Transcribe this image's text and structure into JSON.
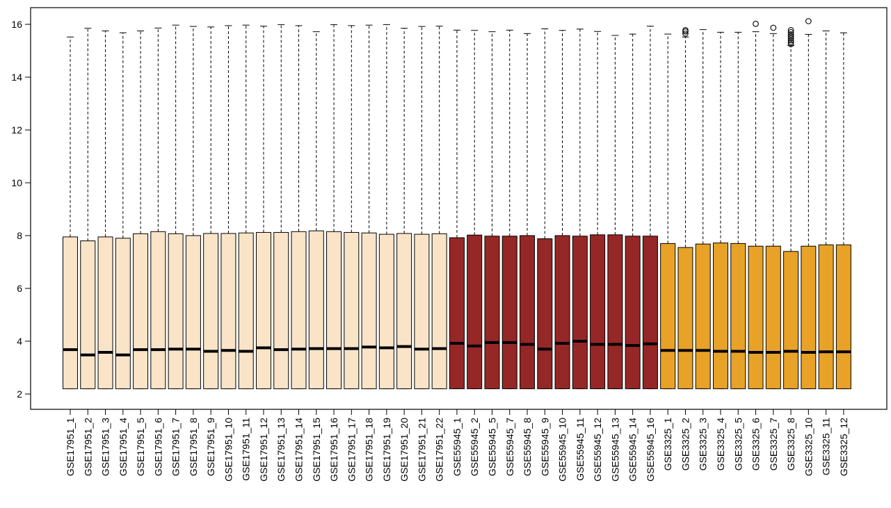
{
  "chart_data": {
    "type": "boxplot",
    "ylim": [
      2,
      16
    ],
    "y_ticks": [
      "2",
      "4",
      "6",
      "8",
      "10",
      "12",
      "14",
      "16"
    ],
    "grid": false,
    "groups": [
      {
        "prefix": "GSE17951",
        "color": "#F9E4C7"
      },
      {
        "prefix": "GSE55945",
        "color": "#962727"
      },
      {
        "prefix": "GSE3325",
        "color": "#E8A227"
      }
    ],
    "boxes": [
      {
        "label": "GSE17951_1",
        "group": 0,
        "min": 2.2,
        "q1": 2.2,
        "median": 3.68,
        "q3": 7.95,
        "max": 15.52,
        "outliers": []
      },
      {
        "label": "GSE17951_2",
        "group": 0,
        "min": 2.2,
        "q1": 2.2,
        "median": 3.48,
        "q3": 7.8,
        "max": 15.85,
        "outliers": []
      },
      {
        "label": "GSE17951_3",
        "group": 0,
        "min": 2.2,
        "q1": 2.2,
        "median": 3.58,
        "q3": 7.95,
        "max": 15.75,
        "outliers": []
      },
      {
        "label": "GSE17951_4",
        "group": 0,
        "min": 2.2,
        "q1": 2.2,
        "median": 3.48,
        "q3": 7.9,
        "max": 15.68,
        "outliers": []
      },
      {
        "label": "GSE17951_5",
        "group": 0,
        "min": 2.2,
        "q1": 2.2,
        "median": 3.68,
        "q3": 8.07,
        "max": 15.75,
        "outliers": []
      },
      {
        "label": "GSE17951_6",
        "group": 0,
        "min": 2.2,
        "q1": 2.2,
        "median": 3.68,
        "q3": 8.15,
        "max": 15.86,
        "outliers": []
      },
      {
        "label": "GSE17951_7",
        "group": 0,
        "min": 2.2,
        "q1": 2.2,
        "median": 3.7,
        "q3": 8.07,
        "max": 15.97,
        "outliers": []
      },
      {
        "label": "GSE17951_8",
        "group": 0,
        "min": 2.2,
        "q1": 2.2,
        "median": 3.7,
        "q3": 8.0,
        "max": 15.92,
        "outliers": []
      },
      {
        "label": "GSE17951_9",
        "group": 0,
        "min": 2.2,
        "q1": 2.2,
        "median": 3.62,
        "q3": 8.08,
        "max": 15.9,
        "outliers": []
      },
      {
        "label": "GSE17951_10",
        "group": 0,
        "min": 2.2,
        "q1": 2.2,
        "median": 3.65,
        "q3": 8.08,
        "max": 15.95,
        "outliers": []
      },
      {
        "label": "GSE17951_11",
        "group": 0,
        "min": 2.2,
        "q1": 2.2,
        "median": 3.62,
        "q3": 8.1,
        "max": 15.97,
        "outliers": []
      },
      {
        "label": "GSE17951_12",
        "group": 0,
        "min": 2.2,
        "q1": 2.2,
        "median": 3.75,
        "q3": 8.12,
        "max": 15.93,
        "outliers": []
      },
      {
        "label": "GSE17951_13",
        "group": 0,
        "min": 2.2,
        "q1": 2.2,
        "median": 3.68,
        "q3": 8.12,
        "max": 15.99,
        "outliers": []
      },
      {
        "label": "GSE17951_14",
        "group": 0,
        "min": 2.2,
        "q1": 2.2,
        "median": 3.7,
        "q3": 8.15,
        "max": 15.95,
        "outliers": []
      },
      {
        "label": "GSE17951_15",
        "group": 0,
        "min": 2.2,
        "q1": 2.2,
        "median": 3.72,
        "q3": 8.18,
        "max": 15.72,
        "outliers": []
      },
      {
        "label": "GSE17951_16",
        "group": 0,
        "min": 2.2,
        "q1": 2.2,
        "median": 3.72,
        "q3": 8.15,
        "max": 15.99,
        "outliers": []
      },
      {
        "label": "GSE17951_17",
        "group": 0,
        "min": 2.2,
        "q1": 2.2,
        "median": 3.72,
        "q3": 8.12,
        "max": 15.95,
        "outliers": []
      },
      {
        "label": "GSE17951_18",
        "group": 0,
        "min": 2.2,
        "q1": 2.2,
        "median": 3.78,
        "q3": 8.1,
        "max": 15.97,
        "outliers": []
      },
      {
        "label": "GSE17951_19",
        "group": 0,
        "min": 2.2,
        "q1": 2.2,
        "median": 3.75,
        "q3": 8.05,
        "max": 15.99,
        "outliers": []
      },
      {
        "label": "GSE17951_20",
        "group": 0,
        "min": 2.2,
        "q1": 2.2,
        "median": 3.8,
        "q3": 8.08,
        "max": 15.85,
        "outliers": []
      },
      {
        "label": "GSE17951_21",
        "group": 0,
        "min": 2.2,
        "q1": 2.2,
        "median": 3.7,
        "q3": 8.05,
        "max": 15.92,
        "outliers": []
      },
      {
        "label": "GSE17951_22",
        "group": 0,
        "min": 2.2,
        "q1": 2.2,
        "median": 3.72,
        "q3": 8.07,
        "max": 15.93,
        "outliers": []
      },
      {
        "label": "GSE55945_1",
        "group": 1,
        "min": 2.2,
        "q1": 2.2,
        "median": 3.92,
        "q3": 7.92,
        "max": 15.78,
        "outliers": []
      },
      {
        "label": "GSE55945_2",
        "group": 1,
        "min": 2.2,
        "q1": 2.2,
        "median": 3.82,
        "q3": 8.02,
        "max": 15.77,
        "outliers": []
      },
      {
        "label": "GSE55945_5",
        "group": 1,
        "min": 2.2,
        "q1": 2.2,
        "median": 3.95,
        "q3": 7.98,
        "max": 15.72,
        "outliers": []
      },
      {
        "label": "GSE55945_7",
        "group": 1,
        "min": 2.2,
        "q1": 2.2,
        "median": 3.95,
        "q3": 7.98,
        "max": 15.78,
        "outliers": []
      },
      {
        "label": "GSE55945_8",
        "group": 1,
        "min": 2.2,
        "q1": 2.2,
        "median": 3.88,
        "q3": 8.0,
        "max": 15.65,
        "outliers": []
      },
      {
        "label": "GSE55945_9",
        "group": 1,
        "min": 2.2,
        "q1": 2.2,
        "median": 3.7,
        "q3": 7.88,
        "max": 15.83,
        "outliers": []
      },
      {
        "label": "GSE55945_10",
        "group": 1,
        "min": 2.2,
        "q1": 2.2,
        "median": 3.92,
        "q3": 8.0,
        "max": 15.77,
        "outliers": []
      },
      {
        "label": "GSE55945_11",
        "group": 1,
        "min": 2.2,
        "q1": 2.2,
        "median": 4.0,
        "q3": 7.98,
        "max": 15.82,
        "outliers": []
      },
      {
        "label": "GSE55945_12",
        "group": 1,
        "min": 2.2,
        "q1": 2.2,
        "median": 3.88,
        "q3": 8.03,
        "max": 15.73,
        "outliers": []
      },
      {
        "label": "GSE55945_13",
        "group": 1,
        "min": 2.2,
        "q1": 2.2,
        "median": 3.88,
        "q3": 8.03,
        "max": 15.58,
        "outliers": []
      },
      {
        "label": "GSE55945_14",
        "group": 1,
        "min": 2.2,
        "q1": 2.2,
        "median": 3.84,
        "q3": 7.98,
        "max": 15.63,
        "outliers": []
      },
      {
        "label": "GSE55945_16",
        "group": 1,
        "min": 2.2,
        "q1": 2.2,
        "median": 3.9,
        "q3": 7.98,
        "max": 15.93,
        "outliers": []
      },
      {
        "label": "GSE3325_1",
        "group": 2,
        "min": 2.2,
        "q1": 2.2,
        "median": 3.65,
        "q3": 7.7,
        "max": 15.63,
        "outliers": []
      },
      {
        "label": "GSE3325_2",
        "group": 2,
        "min": 2.2,
        "q1": 2.2,
        "median": 3.65,
        "q3": 7.55,
        "max": 15.52,
        "outliers": [
          15.65,
          15.73,
          15.78
        ]
      },
      {
        "label": "GSE3325_3",
        "group": 2,
        "min": 2.2,
        "q1": 2.2,
        "median": 3.65,
        "q3": 7.68,
        "max": 15.8,
        "outliers": []
      },
      {
        "label": "GSE3325_4",
        "group": 2,
        "min": 2.2,
        "q1": 2.2,
        "median": 3.62,
        "q3": 7.72,
        "max": 15.7,
        "outliers": []
      },
      {
        "label": "GSE3325_5",
        "group": 2,
        "min": 2.2,
        "q1": 2.2,
        "median": 3.62,
        "q3": 7.7,
        "max": 15.7,
        "outliers": []
      },
      {
        "label": "GSE3325_6",
        "group": 2,
        "min": 2.2,
        "q1": 2.2,
        "median": 3.58,
        "q3": 7.6,
        "max": 15.72,
        "outliers": [
          16.02
        ]
      },
      {
        "label": "GSE3325_7",
        "group": 2,
        "min": 2.2,
        "q1": 2.2,
        "median": 3.58,
        "q3": 7.6,
        "max": 15.65,
        "outliers": [
          15.87
        ]
      },
      {
        "label": "GSE3325_8",
        "group": 2,
        "min": 2.2,
        "q1": 2.2,
        "median": 3.62,
        "q3": 7.4,
        "max": 15.2,
        "outliers": [
          15.25,
          15.33,
          15.4,
          15.48,
          15.55,
          15.62,
          15.7,
          15.78
        ]
      },
      {
        "label": "GSE3325_10",
        "group": 2,
        "min": 2.2,
        "q1": 2.2,
        "median": 3.58,
        "q3": 7.6,
        "max": 15.62,
        "outliers": [
          16.12
        ]
      },
      {
        "label": "GSE3325_11",
        "group": 2,
        "min": 2.2,
        "q1": 2.2,
        "median": 3.6,
        "q3": 7.65,
        "max": 15.75,
        "outliers": []
      },
      {
        "label": "GSE3325_12",
        "group": 2,
        "min": 2.2,
        "q1": 2.2,
        "median": 3.6,
        "q3": 7.65,
        "max": 15.68,
        "outliers": []
      }
    ]
  }
}
